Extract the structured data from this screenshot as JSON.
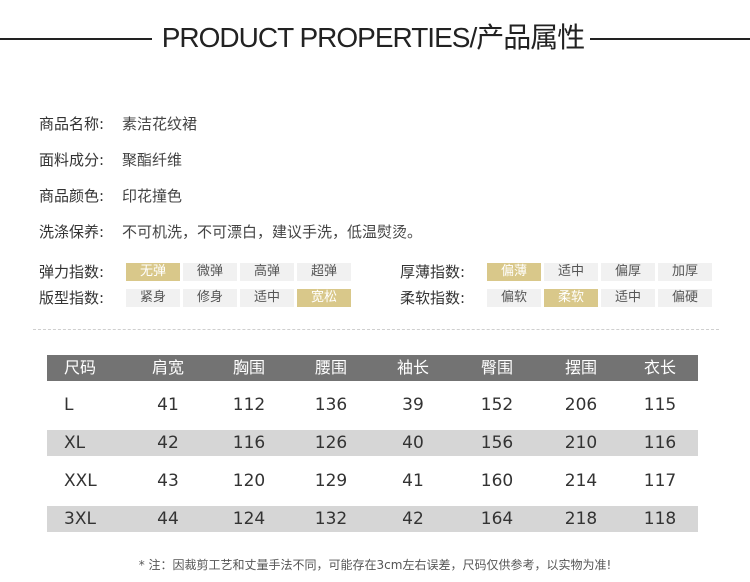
{
  "header": {
    "title": "PRODUCT PROPERTIES/产品属性"
  },
  "properties": [
    {
      "label": "商品名称:",
      "value": "素洁花纹裙"
    },
    {
      "label": "面料成分:",
      "value": "聚酯纤维"
    },
    {
      "label": "商品颜色:",
      "value": "印花撞色"
    },
    {
      "label": "洗涤保养:",
      "value": "不可机洗，不可漂白，建议手洗，低温熨烫。"
    }
  ],
  "scales": [
    {
      "label": "弹力指数:",
      "options": [
        "无弹",
        "微弹",
        "高弹",
        "超弹"
      ],
      "selected": "无弹"
    },
    {
      "label": "版型指数:",
      "options": [
        "紧身",
        "修身",
        "适中",
        "宽松"
      ],
      "selected": "宽松"
    },
    {
      "label": "厚薄指数:",
      "options": [
        "偏薄",
        "适中",
        "偏厚",
        "加厚"
      ],
      "selected": "偏薄"
    },
    {
      "label": "柔软指数:",
      "options": [
        "偏软",
        "柔软",
        "适中",
        "偏硬"
      ],
      "selected": "柔软"
    }
  ],
  "colors": {
    "highlight": "#d9c88a",
    "header_bg": "#737373",
    "stripe_bg": "#d6d6d6",
    "option_bg": "#f1f1f1"
  },
  "size_table": {
    "columns": [
      "尺码",
      "肩宽",
      "胸围",
      "腰围",
      "袖长",
      "臀围",
      "摆围",
      "衣长"
    ],
    "rows": [
      [
        "L",
        "41",
        "112",
        "136",
        "39",
        "152",
        "206",
        "115"
      ],
      [
        "XL",
        "42",
        "116",
        "126",
        "40",
        "156",
        "210",
        "116"
      ],
      [
        "XXL",
        "43",
        "120",
        "129",
        "41",
        "160",
        "214",
        "117"
      ],
      [
        "3XL",
        "44",
        "124",
        "132",
        "42",
        "164",
        "218",
        "118"
      ]
    ]
  },
  "note": "* 注：因裁剪工艺和丈量手法不同，可能存在3cm左右误差，尺码仅供参考，以实物为准!"
}
